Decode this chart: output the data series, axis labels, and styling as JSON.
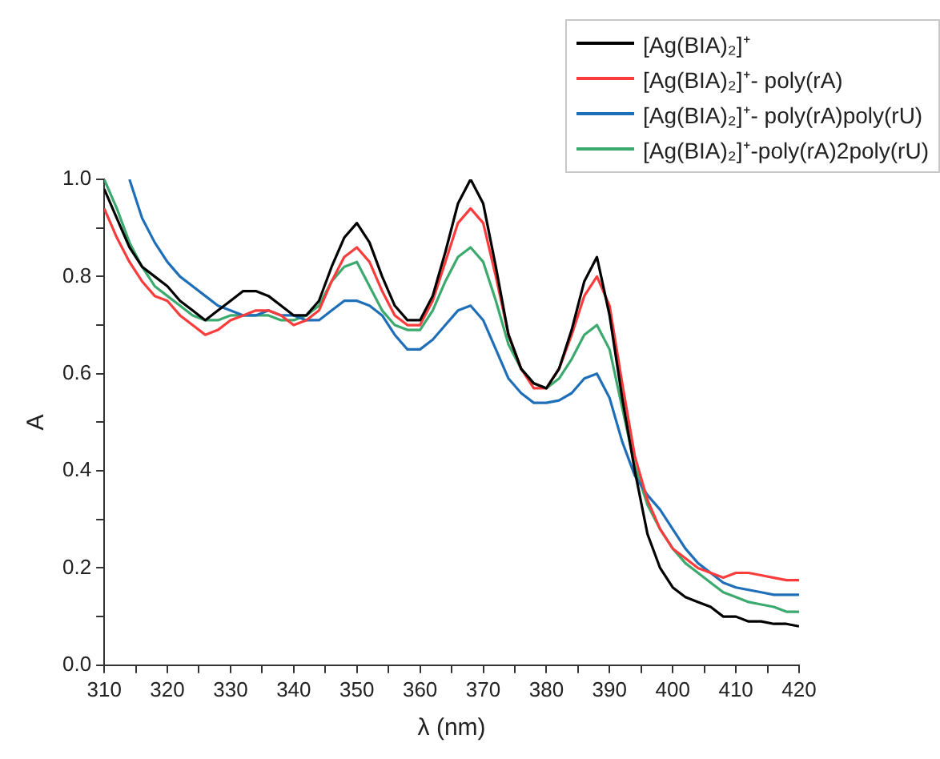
{
  "chart_data": {
    "type": "line",
    "xlabel": "λ (nm)",
    "ylabel": "A",
    "xlim": [
      310,
      420
    ],
    "ylim": [
      0,
      1
    ],
    "xticks": [
      310,
      {
        "value": 315,
        "label": null
      },
      320,
      {
        "value": 325,
        "label": null
      },
      330,
      {
        "value": 335,
        "label": null
      },
      340,
      {
        "value": 345,
        "label": null
      },
      350,
      {
        "value": 355,
        "label": null
      },
      360,
      {
        "value": 365,
        "label": null
      },
      370,
      {
        "value": 375,
        "label": null
      },
      380,
      {
        "value": 385,
        "label": null
      },
      390,
      {
        "value": 395,
        "label": null
      },
      400,
      {
        "value": 405,
        "label": null
      },
      410,
      {
        "value": 415,
        "label": null
      },
      420
    ],
    "yticks": [
      {
        "value": 0,
        "label": "0.0"
      },
      {
        "value": 0.1,
        "label": null
      },
      0.2,
      {
        "value": 0.3,
        "label": null
      },
      0.4,
      {
        "value": 0.5,
        "label": null
      },
      0.6,
      {
        "value": 0.7,
        "label": null
      },
      0.8,
      {
        "value": 0.9,
        "label": null
      },
      {
        "value": 1,
        "label": "1.0"
      }
    ],
    "grid": false,
    "legend": "top right",
    "marker": "none",
    "line_style": "solid",
    "x": [
      310,
      312,
      314,
      316,
      318,
      320,
      322,
      324,
      326,
      328,
      330,
      332,
      334,
      336,
      338,
      340,
      342,
      344,
      346,
      348,
      350,
      352,
      354,
      356,
      358,
      360,
      362,
      364,
      366,
      368,
      370,
      372,
      374,
      376,
      378,
      380,
      382,
      384,
      386,
      388,
      390,
      392,
      394,
      396,
      398,
      400,
      402,
      404,
      406,
      408,
      410,
      412,
      414,
      416,
      418,
      420
    ],
    "series": [
      {
        "name": "[Ag(BIA)₂]⁺",
        "color": "#000000",
        "values": [
          0.98,
          0.92,
          0.86,
          0.82,
          0.8,
          0.78,
          0.75,
          0.73,
          0.71,
          0.73,
          0.75,
          0.77,
          0.77,
          0.76,
          0.74,
          0.72,
          0.72,
          0.75,
          0.82,
          0.88,
          0.91,
          0.87,
          0.8,
          0.74,
          0.71,
          0.71,
          0.76,
          0.85,
          0.95,
          1.0,
          0.95,
          0.82,
          0.68,
          0.61,
          0.58,
          0.57,
          0.61,
          0.69,
          0.79,
          0.84,
          0.72,
          0.55,
          0.4,
          0.27,
          0.2,
          0.16,
          0.14,
          0.13,
          0.12,
          0.1,
          0.1,
          0.09,
          0.09,
          0.085,
          0.085,
          0.08
        ]
      },
      {
        "name": "[Ag(BIA)₂]⁺- poly(rA)",
        "color": "#fa3c3c",
        "values": [
          0.94,
          0.88,
          0.83,
          0.79,
          0.76,
          0.75,
          0.72,
          0.7,
          0.68,
          0.69,
          0.71,
          0.72,
          0.73,
          0.73,
          0.72,
          0.7,
          0.71,
          0.73,
          0.79,
          0.84,
          0.86,
          0.83,
          0.77,
          0.72,
          0.7,
          0.7,
          0.75,
          0.83,
          0.91,
          0.94,
          0.91,
          0.8,
          0.68,
          0.61,
          0.57,
          0.57,
          0.61,
          0.68,
          0.76,
          0.8,
          0.74,
          0.58,
          0.43,
          0.34,
          0.28,
          0.24,
          0.22,
          0.2,
          0.19,
          0.18,
          0.19,
          0.19,
          0.185,
          0.18,
          0.175,
          0.175
        ]
      },
      {
        "name": "[Ag(BIA)₂]⁺- poly(rA)poly(rU)",
        "color": "#1f6fb8",
        "values": [
          null,
          null,
          1.0,
          0.92,
          0.87,
          0.83,
          0.8,
          0.78,
          0.76,
          0.74,
          0.73,
          0.72,
          0.72,
          0.73,
          0.72,
          0.72,
          0.71,
          0.71,
          0.73,
          0.75,
          0.75,
          0.74,
          0.72,
          0.68,
          0.65,
          0.65,
          0.67,
          0.7,
          0.73,
          0.74,
          0.71,
          0.65,
          0.59,
          0.56,
          0.54,
          0.54,
          0.545,
          0.56,
          0.59,
          0.6,
          0.55,
          0.46,
          0.39,
          0.35,
          0.32,
          0.28,
          0.24,
          0.21,
          0.19,
          0.17,
          0.16,
          0.155,
          0.15,
          0.145,
          0.145,
          0.145
        ]
      },
      {
        "name": "[Ag(BIA)₂]⁺-poly(rA)2poly(rU)",
        "color": "#3caa6e",
        "values": [
          1.0,
          0.94,
          0.87,
          0.82,
          0.78,
          0.76,
          0.74,
          0.72,
          0.71,
          0.71,
          0.72,
          0.72,
          0.72,
          0.72,
          0.71,
          0.71,
          0.72,
          0.74,
          0.79,
          0.82,
          0.83,
          0.78,
          0.73,
          0.7,
          0.69,
          0.69,
          0.73,
          0.79,
          0.84,
          0.86,
          0.83,
          0.75,
          0.66,
          0.61,
          0.58,
          0.57,
          0.59,
          0.63,
          0.68,
          0.7,
          0.65,
          0.53,
          0.41,
          0.33,
          0.28,
          0.24,
          0.21,
          0.19,
          0.17,
          0.15,
          0.14,
          0.13,
          0.125,
          0.12,
          0.11,
          0.11
        ]
      }
    ]
  }
}
